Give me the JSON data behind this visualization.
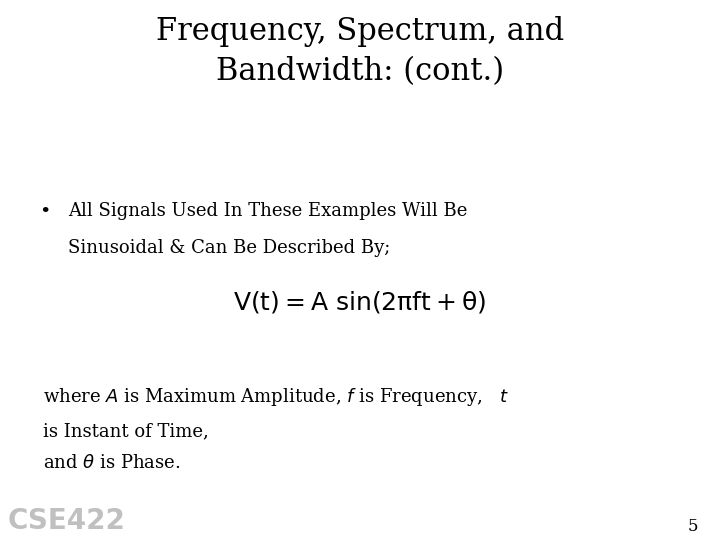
{
  "title_line1": "Frequency, Spectrum, and",
  "title_line2": "Bandwidth: (cont.)",
  "bullet_text_line1": "All Signals Used In These Examples Will Be",
  "bullet_text_line2": "Sinusoidal & Can Be Described By;",
  "where_line1": "where $A$ is Maximum Amplitude, $f$ is Frequency,   $t$",
  "where_line2": "is Instant of Time,",
  "where_line3": "and $\\theta$ is Phase.",
  "watermark": "CSE422",
  "page_number": "5",
  "bg_color": "#ffffff",
  "text_color": "#000000",
  "watermark_color": "#c0c0c0",
  "title_fontsize": 22,
  "body_fontsize": 13,
  "formula_fontsize": 16,
  "watermark_fontsize": 20,
  "page_fontsize": 12
}
